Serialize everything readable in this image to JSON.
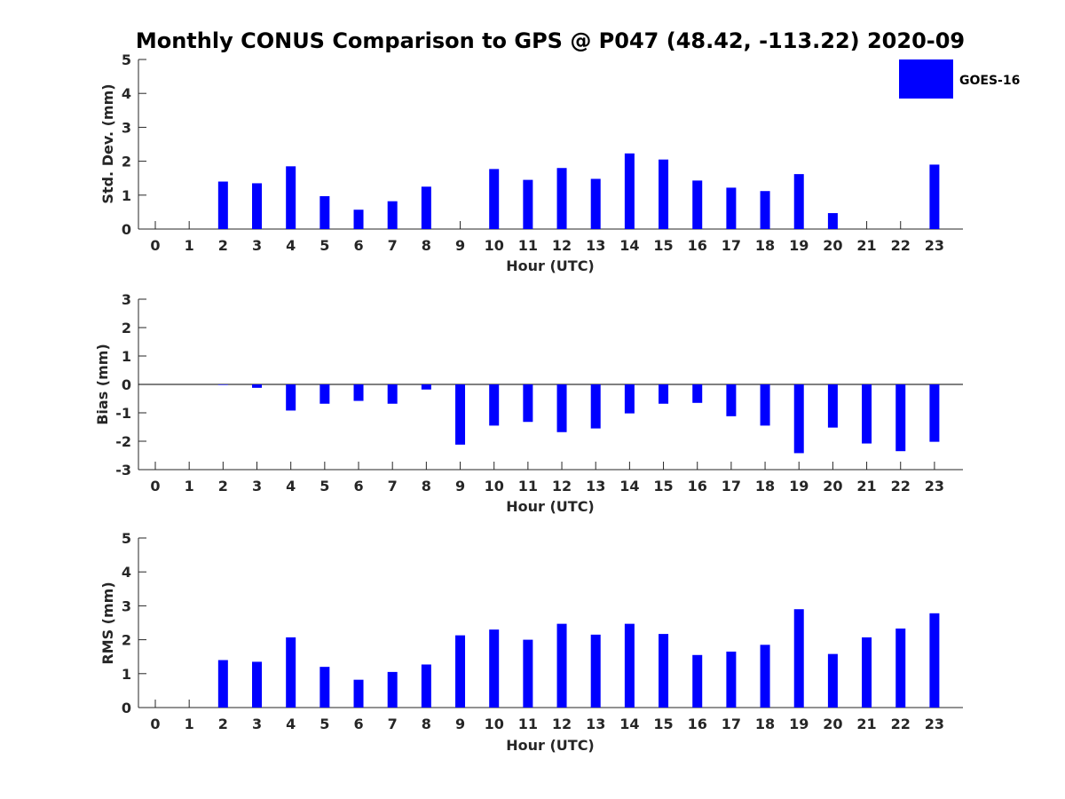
{
  "chart_data": {
    "type": "bar",
    "title": "Monthly CONUS Comparison to GPS @ P047 (48.42, -113.22) 2020-09",
    "legend": {
      "label": "GOES-16",
      "color": "#0000ff",
      "placement": "top-right"
    },
    "bar_color": "#0000ff",
    "categories": [
      "0",
      "1",
      "2",
      "3",
      "4",
      "5",
      "6",
      "7",
      "8",
      "9",
      "10",
      "11",
      "12",
      "13",
      "14",
      "15",
      "16",
      "17",
      "18",
      "19",
      "20",
      "21",
      "22",
      "23"
    ],
    "panels": [
      {
        "id": "std",
        "ylabel": "Std. Dev. (mm)",
        "xlabel": "Hour (UTC)",
        "ylim": [
          0,
          5
        ],
        "yticks": [
          "0",
          "1",
          "2",
          "3",
          "4",
          "5"
        ],
        "values": [
          0,
          0,
          1.4,
          1.35,
          1.85,
          0.97,
          0.57,
          0.82,
          1.25,
          0,
          1.77,
          1.45,
          1.8,
          1.48,
          2.23,
          2.05,
          1.43,
          1.22,
          1.12,
          1.62,
          0.47,
          0,
          0,
          1.9
        ]
      },
      {
        "id": "bias",
        "ylabel": "Bias (mm)",
        "xlabel": "Hour (UTC)",
        "ylim": [
          -3,
          3
        ],
        "yticks": [
          "-3",
          "-2",
          "-1",
          "0",
          "1",
          "2",
          "3"
        ],
        "values": [
          0,
          0,
          -0.02,
          -0.12,
          -0.92,
          -0.68,
          -0.58,
          -0.68,
          -0.18,
          -2.12,
          -1.45,
          -1.32,
          -1.68,
          -1.55,
          -1.02,
          -0.68,
          -0.65,
          -1.12,
          -1.45,
          -2.42,
          -1.52,
          -2.08,
          -2.35,
          -2.02
        ]
      },
      {
        "id": "rms",
        "ylabel": "RMS (mm)",
        "xlabel": "Hour (UTC)",
        "ylim": [
          0,
          5
        ],
        "yticks": [
          "0",
          "1",
          "2",
          "3",
          "4",
          "5"
        ],
        "values": [
          0,
          0,
          1.4,
          1.35,
          2.07,
          1.2,
          0.82,
          1.05,
          1.27,
          2.13,
          2.3,
          2.0,
          2.47,
          2.15,
          2.47,
          2.17,
          1.55,
          1.65,
          1.85,
          2.9,
          1.58,
          2.07,
          2.33,
          2.78
        ]
      }
    ]
  }
}
